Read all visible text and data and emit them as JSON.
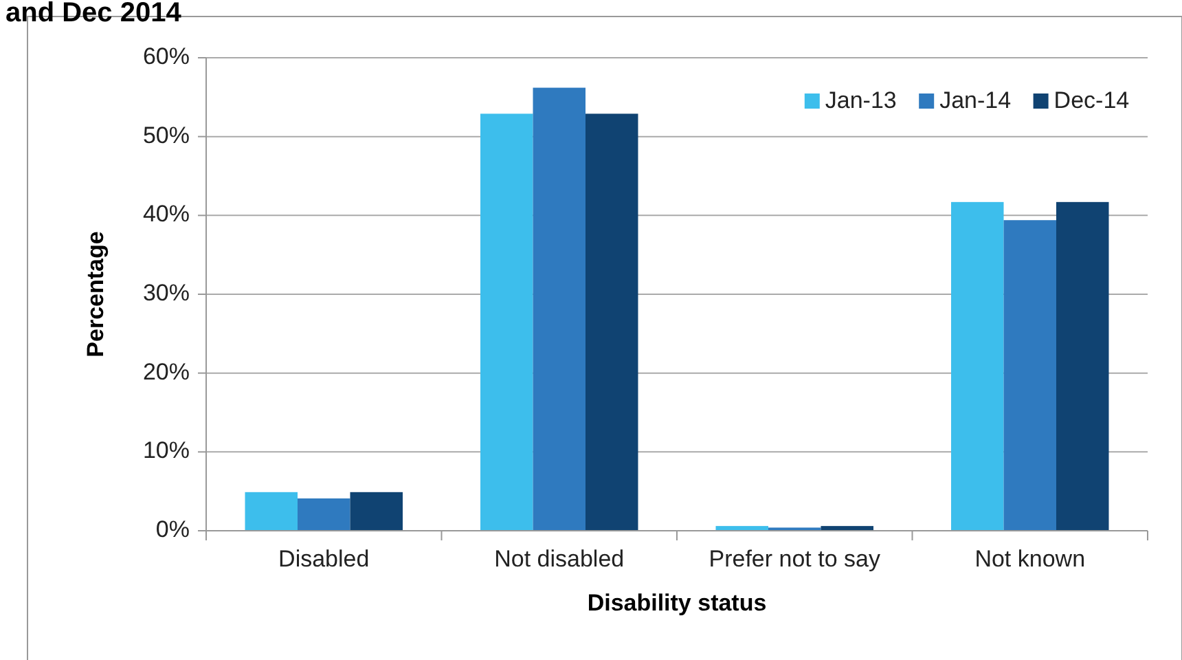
{
  "chart_data": {
    "type": "bar",
    "title": "and Dec 2014",
    "xlabel": "Disability status",
    "ylabel": "Percentage",
    "categories": [
      "Disabled",
      "Not disabled",
      "Prefer not to say",
      "Not known"
    ],
    "series": [
      {
        "name": "Jan-13",
        "color": "#3dbeec",
        "values": [
          4.9,
          52.9,
          0.6,
          41.7
        ]
      },
      {
        "name": "Jan-14",
        "color": "#2f7abf",
        "values": [
          4.1,
          56.2,
          0.4,
          39.4
        ]
      },
      {
        "name": "Dec-14",
        "color": "#104372",
        "values": [
          4.9,
          52.9,
          0.6,
          41.7
        ]
      }
    ],
    "ylim": [
      0,
      60
    ],
    "yticks": [
      {
        "value": 0,
        "label": "0%"
      },
      {
        "value": 10,
        "label": "10%"
      },
      {
        "value": 20,
        "label": "20%"
      },
      {
        "value": 30,
        "label": "30%"
      },
      {
        "value": 40,
        "label": "40%"
      },
      {
        "value": 50,
        "label": "50%"
      },
      {
        "value": 60,
        "label": "60%"
      }
    ],
    "grid": "y",
    "legend": "top right"
  }
}
